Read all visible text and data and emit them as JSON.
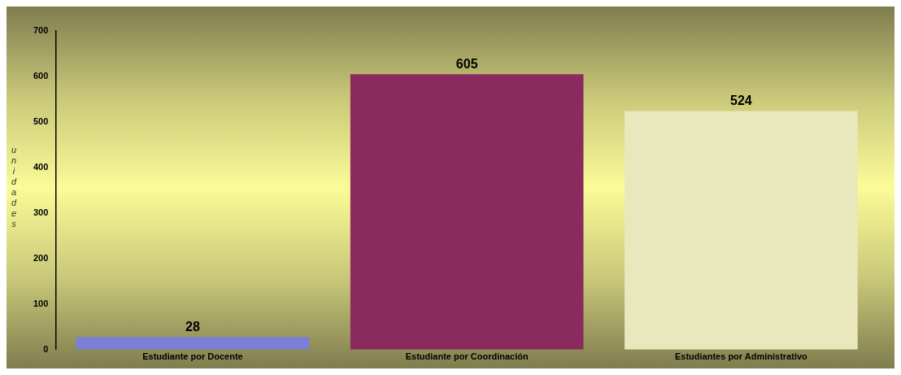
{
  "chart_data": {
    "type": "bar",
    "ylabel": "unidades",
    "categories": [
      "Estudiante por Docente",
      "Estudiante por Coordinación",
      "Estudiantes por Administrativo"
    ],
    "values": [
      28,
      605,
      524
    ],
    "colors": [
      "#7b7fd8",
      "#8a2a5e",
      "#e8e8bc"
    ],
    "ylim": [
      0,
      700
    ],
    "yticks": [
      0,
      100,
      200,
      300,
      400,
      500,
      600,
      700
    ],
    "data_labels": true,
    "grid": false,
    "legend": false
  }
}
